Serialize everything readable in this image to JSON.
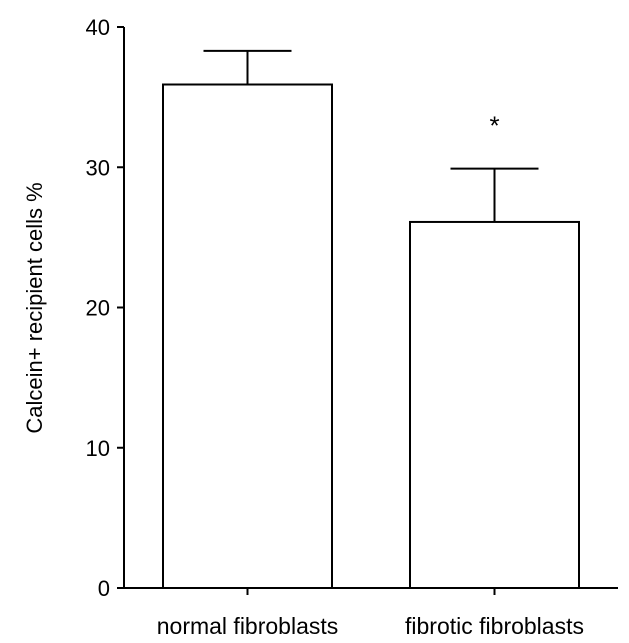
{
  "chart_data": {
    "type": "bar",
    "title": "",
    "xlabel": "",
    "ylabel": "Calcein+ recipient cells %",
    "categories": [
      "normal fibroblasts",
      "fibrotic fibroblasts"
    ],
    "values": [
      35.9,
      26.1
    ],
    "error": [
      2.4,
      3.8
    ],
    "annotations": [
      "",
      "*"
    ],
    "ylim": [
      0,
      40
    ],
    "yticks": [
      0,
      10,
      20,
      30,
      40
    ],
    "ytick_labels": [
      "0",
      "10",
      "20",
      "30",
      "40"
    ],
    "grid": false,
    "legend": "none",
    "colors": {
      "bar_fill": "#ffffff",
      "stroke": "#000000"
    }
  }
}
